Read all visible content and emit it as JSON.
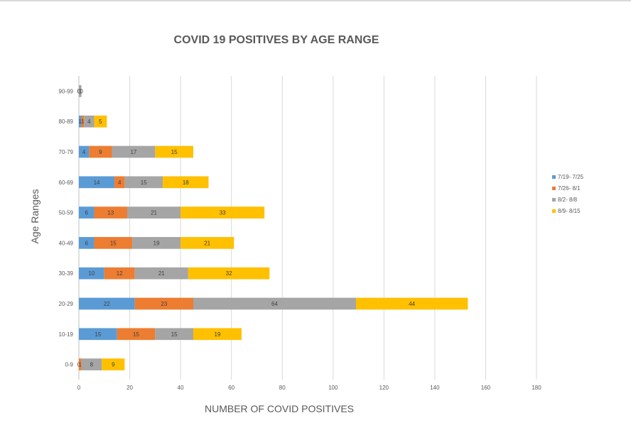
{
  "chart_data": {
    "type": "bar",
    "orientation": "horizontal",
    "stacked": true,
    "title": "COVID 19 POSITIVES BY AGE RANGE",
    "xlabel": "NUMBER OF COVID POSITIVES",
    "ylabel": "Age Ranges",
    "xlim": [
      0,
      180
    ],
    "xticks": [
      0,
      20,
      40,
      60,
      80,
      100,
      120,
      140,
      160,
      180
    ],
    "grid": true,
    "legend_position": "right",
    "categories": [
      "0-9",
      "10-19",
      "20-29",
      "30-39",
      "40-49",
      "50-59",
      "60-69",
      "70-79",
      "80-89",
      "90-99"
    ],
    "series": [
      {
        "name": "7/19- 7/25",
        "color": "#5b9bd5",
        "values": [
          0,
          15,
          22,
          10,
          6,
          6,
          14,
          4,
          1,
          0
        ]
      },
      {
        "name": "7/26- 8/1",
        "color": "#ed7d31",
        "values": [
          1,
          15,
          23,
          12,
          15,
          13,
          4,
          9,
          1,
          0
        ]
      },
      {
        "name": "8/2- 8/8",
        "color": "#a5a5a5",
        "values": [
          8,
          15,
          64,
          21,
          19,
          21,
          15,
          17,
          4,
          1
        ]
      },
      {
        "name": "8/9- 8/15",
        "color": "#ffc000",
        "values": [
          9,
          19,
          44,
          32,
          21,
          33,
          18,
          15,
          5,
          0
        ]
      }
    ]
  }
}
